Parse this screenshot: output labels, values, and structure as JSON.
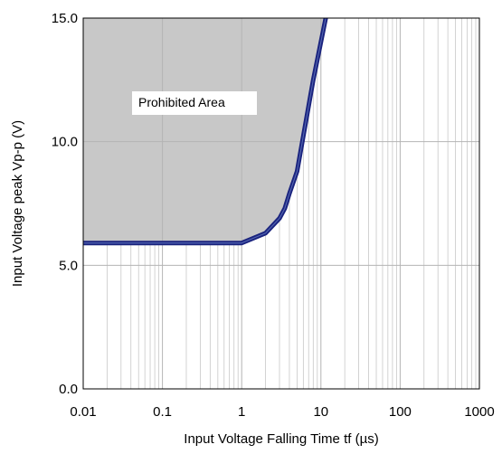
{
  "chart_data": {
    "type": "line",
    "title": "",
    "xlabel": "Input Voltage Falling Time tf (µs)",
    "ylabel": "Input Voltage peak Vp-p (V)",
    "x_scale": "log",
    "xlim": [
      0.01,
      1000
    ],
    "ylim": [
      0.0,
      15.0
    ],
    "x_ticks": [
      0.01,
      0.1,
      1,
      10,
      100,
      1000
    ],
    "x_tick_labels": [
      "0.01",
      "0.1",
      "1",
      "10",
      "100",
      "1000"
    ],
    "y_ticks": [
      0,
      5,
      10,
      15
    ],
    "y_tick_labels": [
      "0.0",
      "5.0",
      "10.0",
      "15.0"
    ],
    "grid": true,
    "legend": "none",
    "series": [
      {
        "x": [
          0.01,
          0.1,
          1,
          2,
          3,
          3.5,
          4,
          5,
          8,
          11.5
        ],
        "y": [
          5.9,
          5.9,
          5.9,
          6.3,
          6.9,
          7.3,
          7.9,
          8.8,
          12.5,
          15.0
        ]
      }
    ],
    "region": {
      "label": "Prohibited Area",
      "fill": "#c8c8c8"
    },
    "colors": {
      "line": "#1a237e",
      "line_highlight": "#6a7fc4",
      "grid_major": "#b4b4b4",
      "grid_minor": "#c8c8c8",
      "axis": "#000000"
    }
  }
}
